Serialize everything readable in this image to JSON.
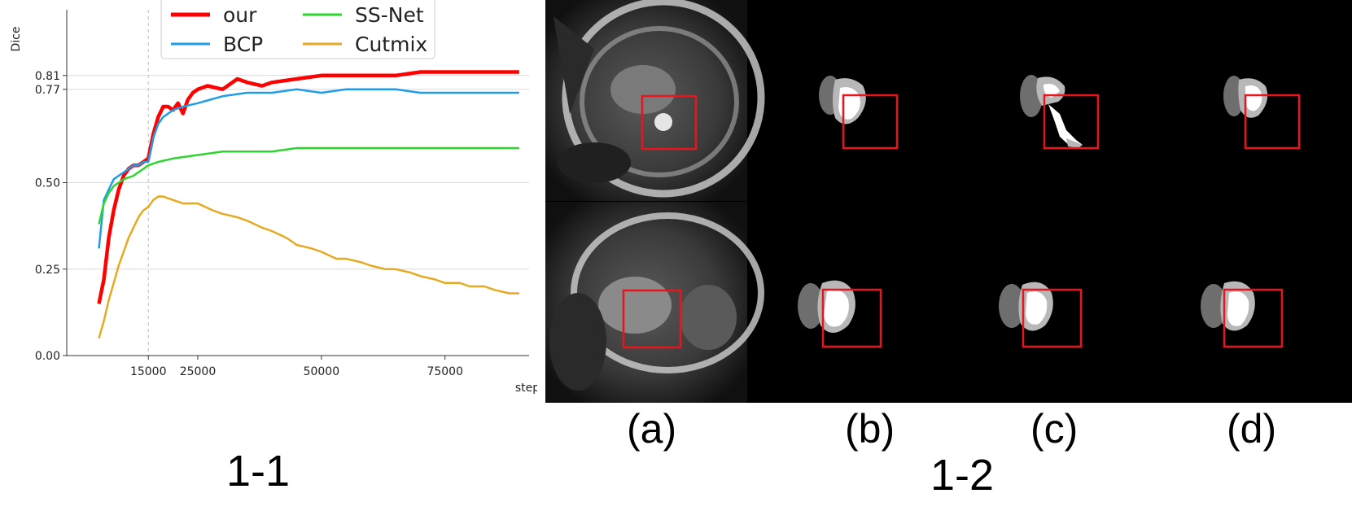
{
  "chart_data": {
    "type": "line",
    "ylabel": "Dice",
    "xlabel": "step",
    "xlim": [
      -1500,
      92000
    ],
    "ylim": [
      0.0,
      1.0
    ],
    "grid": true,
    "legend_position": "top",
    "xticks": [
      15000,
      25000,
      50000,
      75000
    ],
    "xtick_labels": [
      "15000",
      "25000",
      "50000",
      "75000"
    ],
    "yticks": [
      0.0,
      0.25,
      0.5,
      0.77,
      0.81
    ],
    "ytick_labels": [
      "0.00",
      "0.25",
      "0.50",
      "0.77",
      "0.81"
    ],
    "reference_line_x": 15000,
    "series": [
      {
        "name": "our",
        "color": "#ff0000",
        "x": [
          5000,
          6000,
          7000,
          8000,
          9000,
          10000,
          11000,
          12000,
          13000,
          14000,
          15000,
          16000,
          17000,
          18000,
          19000,
          20000,
          21000,
          22000,
          23000,
          24000,
          25000,
          27000,
          30000,
          33000,
          35000,
          38000,
          40000,
          45000,
          50000,
          55000,
          60000,
          65000,
          70000,
          75000,
          80000,
          85000,
          90000
        ],
        "y": [
          0.15,
          0.22,
          0.34,
          0.42,
          0.48,
          0.52,
          0.54,
          0.55,
          0.55,
          0.56,
          0.57,
          0.64,
          0.69,
          0.72,
          0.72,
          0.71,
          0.73,
          0.7,
          0.74,
          0.76,
          0.77,
          0.78,
          0.77,
          0.8,
          0.79,
          0.78,
          0.79,
          0.8,
          0.81,
          0.81,
          0.81,
          0.81,
          0.82,
          0.82,
          0.82,
          0.82,
          0.82
        ]
      },
      {
        "name": "BCP",
        "color": "#1f9de6",
        "x": [
          5000,
          6000,
          7000,
          8000,
          9000,
          10000,
          11000,
          12000,
          13000,
          14000,
          15000,
          16000,
          17000,
          18000,
          20000,
          22000,
          25000,
          30000,
          35000,
          40000,
          45000,
          50000,
          55000,
          60000,
          65000,
          70000,
          75000,
          80000,
          85000,
          90000
        ],
        "y": [
          0.31,
          0.45,
          0.48,
          0.51,
          0.52,
          0.53,
          0.54,
          0.55,
          0.55,
          0.56,
          0.56,
          0.63,
          0.67,
          0.69,
          0.71,
          0.72,
          0.73,
          0.75,
          0.76,
          0.76,
          0.77,
          0.76,
          0.77,
          0.77,
          0.77,
          0.76,
          0.76,
          0.76,
          0.76,
          0.76
        ]
      },
      {
        "name": "SS-Net",
        "color": "#2ed52e",
        "x": [
          5000,
          6000,
          7000,
          8000,
          9000,
          10000,
          12000,
          14000,
          15000,
          17000,
          20000,
          25000,
          30000,
          35000,
          40000,
          45000,
          50000,
          55000,
          60000,
          65000,
          70000,
          75000,
          80000,
          85000,
          90000
        ],
        "y": [
          0.38,
          0.44,
          0.47,
          0.49,
          0.5,
          0.51,
          0.52,
          0.54,
          0.55,
          0.56,
          0.57,
          0.58,
          0.59,
          0.59,
          0.59,
          0.6,
          0.6,
          0.6,
          0.6,
          0.6,
          0.6,
          0.6,
          0.6,
          0.6,
          0.6
        ]
      },
      {
        "name": "Cutmix",
        "color": "#e6a91f",
        "x": [
          5000,
          6000,
          7000,
          8000,
          9000,
          10000,
          11000,
          12000,
          13000,
          14000,
          15000,
          16000,
          17000,
          18000,
          20000,
          22000,
          25000,
          28000,
          30000,
          33000,
          35000,
          38000,
          40000,
          43000,
          45000,
          48000,
          50000,
          53000,
          55000,
          58000,
          60000,
          63000,
          65000,
          68000,
          70000,
          73000,
          75000,
          78000,
          80000,
          83000,
          85000,
          88000,
          90000
        ],
        "y": [
          0.05,
          0.1,
          0.16,
          0.21,
          0.26,
          0.3,
          0.34,
          0.37,
          0.4,
          0.42,
          0.43,
          0.45,
          0.46,
          0.46,
          0.45,
          0.44,
          0.44,
          0.42,
          0.41,
          0.4,
          0.39,
          0.37,
          0.36,
          0.34,
          0.32,
          0.31,
          0.3,
          0.28,
          0.28,
          0.27,
          0.26,
          0.25,
          0.25,
          0.24,
          0.23,
          0.22,
          0.21,
          0.21,
          0.2,
          0.2,
          0.19,
          0.18,
          0.18
        ]
      }
    ]
  },
  "labels": {
    "left_panel": "1-1",
    "right_panel": "1-2",
    "sub_a": "(a)",
    "sub_b": "(b)",
    "sub_c": "(c)",
    "sub_d": "(d)"
  },
  "colors": {
    "highlight_box": "#e8141e",
    "mask_white": "#ffffff",
    "mask_light_gray": "#b8b8b8",
    "mask_dark_gray": "#6e6e6e"
  }
}
